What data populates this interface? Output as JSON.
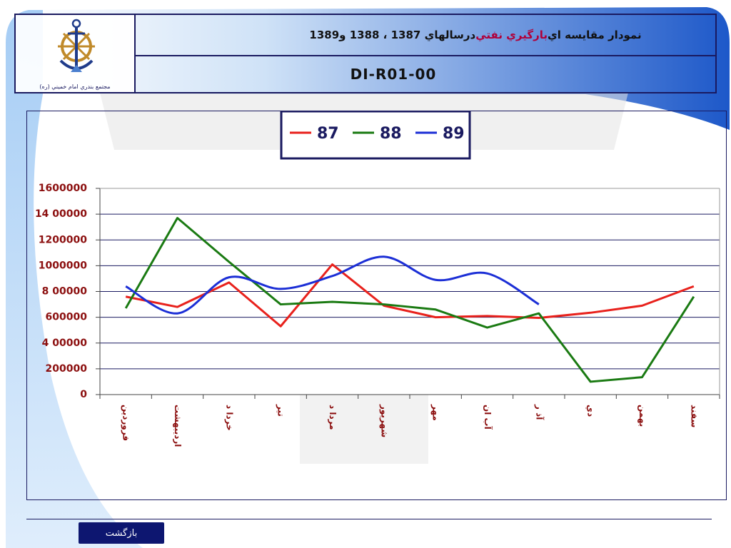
{
  "header": {
    "title_part1": "نمودار مقايسه اي ",
    "title_highlight": "بارگيري نفتي",
    "title_part2": " درسالهاي 1387 ، 1388 و1389",
    "code": "DI-R01-00",
    "logo_caption": "مجتمع بندري امام خميني (ره)"
  },
  "footer": {
    "back_label": "بازگشت"
  },
  "colors": {
    "frame": "#1a1a60",
    "series_87": "#e8211c",
    "series_88": "#1a7a12",
    "series_89": "#1c2fd6",
    "tick_label": "#8b0e0e",
    "category_label": "#8b0e0e"
  },
  "chart_data": {
    "type": "line",
    "categories": [
      "فروردين",
      "ارديبهشت",
      "خرداد",
      "تير",
      "مرداد",
      "شهريور",
      "مهر",
      "آبان",
      "آذر",
      "دي",
      "بهمن",
      "اسفند"
    ],
    "category_labels": [
      "فروردين",
      "ارديبهشت",
      "خردا د",
      "تير",
      "مردا د",
      "شهريور",
      "مهر",
      "آب ان",
      "آذ ر",
      "دي",
      "بهمن",
      "سفند"
    ],
    "series": [
      {
        "name": "87",
        "values": [
          760000,
          680000,
          870000,
          530000,
          1010000,
          690000,
          600000,
          610000,
          595000,
          635000,
          690000,
          840000
        ]
      },
      {
        "name": "88",
        "values": [
          670000,
          1370000,
          1030000,
          700000,
          720000,
          700000,
          660000,
          520000,
          630000,
          100000,
          135000,
          760000
        ]
      },
      {
        "name": "89",
        "values": [
          840000,
          630000,
          910000,
          820000,
          920000,
          1070000,
          890000,
          940000,
          700000,
          null,
          null,
          null
        ]
      }
    ],
    "y_ticks": [
      "1600000",
      "14 00000",
      "1200000",
      "1000000",
      "8 00000",
      "600000",
      "4 00000",
      "200000",
      "0"
    ],
    "ylim": [
      0,
      1600000
    ],
    "y_step": 200000,
    "grid": true,
    "legend_position": "top-center",
    "title": "",
    "xlabel": "",
    "ylabel": ""
  }
}
